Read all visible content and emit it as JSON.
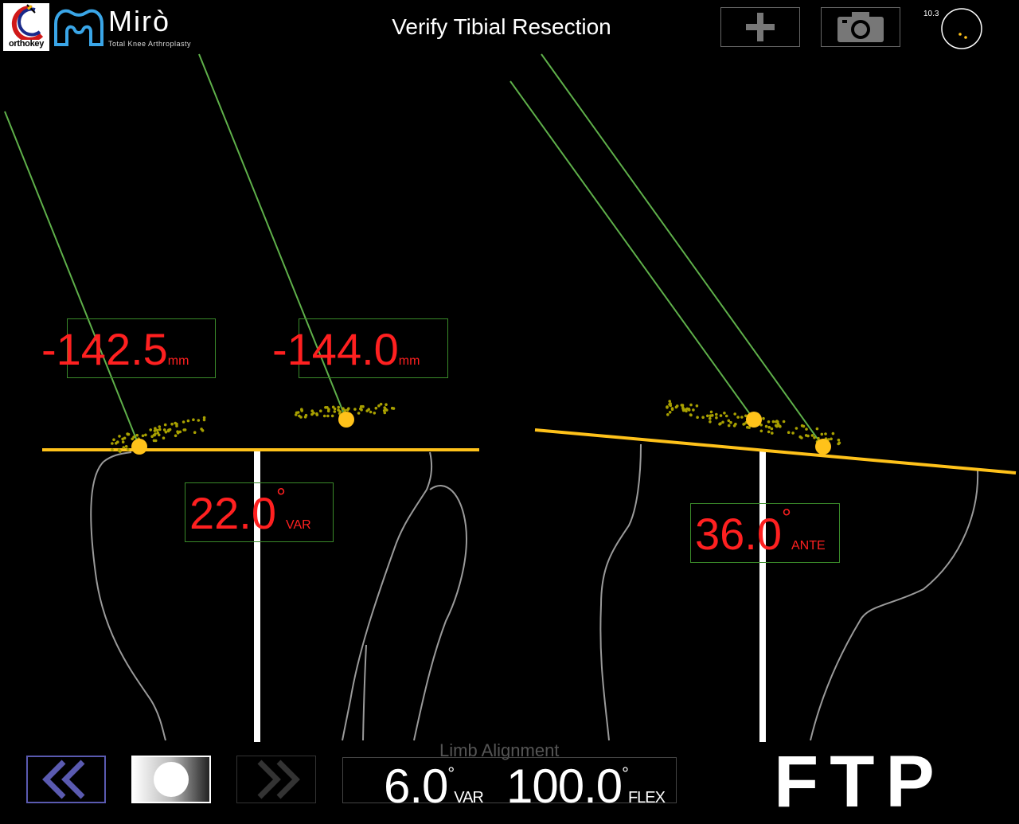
{
  "header": {
    "logo_name": "orthokey",
    "brand_name": "Mirò",
    "brand_subtitle": "Total Knee Arthroplasty",
    "title": "Verify Tibial Resection",
    "add_icon": "plus-icon",
    "camera_icon": "camera-icon",
    "indicator_value": "10.3"
  },
  "measurements": {
    "medial_resection": {
      "value": "-142.5",
      "unit": "mm"
    },
    "lateral_resection": {
      "value": "-144.0",
      "unit": "mm"
    },
    "varus_angle": {
      "value": "22.0",
      "symbol": "°",
      "unit": "VAR"
    },
    "slope_angle": {
      "value": "36.0",
      "symbol": "°",
      "unit": "ANTE"
    }
  },
  "limb_alignment": {
    "label": "Limb Alignment",
    "varus_value": "6.0",
    "varus_symbol": "°",
    "varus_unit": "VAR",
    "flex_value": "100.0",
    "flex_symbol": "°",
    "flex_unit": "FLEX"
  },
  "footer": {
    "back_icon": "double-chevron-left-icon",
    "record_icon": "record-circle-icon",
    "next_icon": "double-chevron-right-icon",
    "mode": "FTP"
  },
  "colors": {
    "pointer_line": "#5fb04a",
    "resection_plane": "#ffc21a",
    "point_cloud": "#a8a000",
    "readout_text": "#ff2020",
    "bone_outline": "#9a9a9a"
  }
}
